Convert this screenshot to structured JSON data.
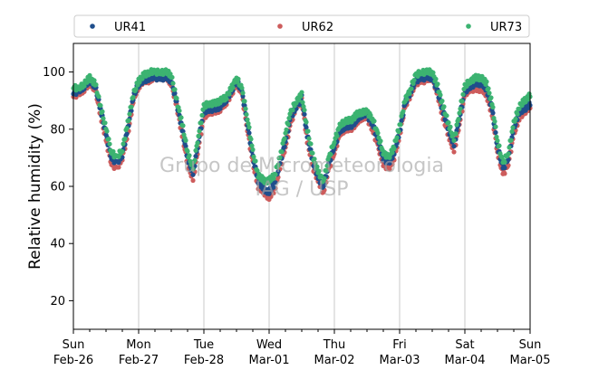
{
  "chart_data": {
    "type": "scatter",
    "title": "",
    "ylabel": "Relative humidity (%)",
    "xlabel": "",
    "xlim": [
      "2023-02-26 00:00",
      "2023-03-05 00:00"
    ],
    "ylim": [
      10,
      110
    ],
    "yticks": [
      20,
      40,
      60,
      80,
      100
    ],
    "xticks": [
      {
        "x": "2023-02-26",
        "day": "Sun",
        "date": "Feb-26"
      },
      {
        "x": "2023-02-27",
        "day": "Mon",
        "date": "Feb-27"
      },
      {
        "x": "2023-02-28",
        "day": "Tue",
        "date": "Feb-28"
      },
      {
        "x": "2023-03-01",
        "day": "Wed",
        "date": "Mar-01"
      },
      {
        "x": "2023-03-02",
        "day": "Thu",
        "date": "Mar-02"
      },
      {
        "x": "2023-03-03",
        "day": "Fri",
        "date": "Mar-03"
      },
      {
        "x": "2023-03-04",
        "day": "Sat",
        "date": "Mar-04"
      },
      {
        "x": "2023-03-05",
        "day": "Sun",
        "date": "Mar-05"
      }
    ],
    "grid": "vertical",
    "legend_position": "top",
    "watermark": [
      "Grupo de Micrometeorologia",
      "IAG / USP"
    ],
    "series": [
      {
        "name": "UR62",
        "color": "#cd5c5c",
        "x": [
          "2023-02-26 00:00",
          "2023-02-26 02:00",
          "2023-02-26 04:00",
          "2023-02-26 06:00",
          "2023-02-26 08:00",
          "2023-02-26 10:00",
          "2023-02-26 12:00",
          "2023-02-26 14:00",
          "2023-02-26 16:00",
          "2023-02-26 18:00",
          "2023-02-26 20:00",
          "2023-02-26 22:00",
          "2023-02-27 00:00",
          "2023-02-27 02:00",
          "2023-02-27 04:00",
          "2023-02-27 06:00",
          "2023-02-27 08:00",
          "2023-02-27 10:00",
          "2023-02-27 12:00",
          "2023-02-27 14:00",
          "2023-02-27 16:00",
          "2023-02-27 18:00",
          "2023-02-27 20:00",
          "2023-02-27 22:00",
          "2023-02-28 00:00",
          "2023-02-28 02:00",
          "2023-02-28 04:00",
          "2023-02-28 06:00",
          "2023-02-28 08:00",
          "2023-02-28 10:00",
          "2023-02-28 12:00",
          "2023-02-28 14:00",
          "2023-02-28 16:00",
          "2023-02-28 18:00",
          "2023-02-28 20:00",
          "2023-02-28 22:00",
          "2023-03-01 00:00",
          "2023-03-01 02:00",
          "2023-03-01 04:00",
          "2023-03-01 06:00",
          "2023-03-01 08:00",
          "2023-03-01 10:00",
          "2023-03-01 12:00",
          "2023-03-01 14:00",
          "2023-03-01 16:00",
          "2023-03-01 18:00",
          "2023-03-01 20:00",
          "2023-03-01 22:00",
          "2023-03-02 00:00",
          "2023-03-02 02:00",
          "2023-03-02 04:00",
          "2023-03-02 06:00",
          "2023-03-02 08:00",
          "2023-03-02 10:00",
          "2023-03-02 12:00",
          "2023-03-02 14:00",
          "2023-03-02 16:00",
          "2023-03-02 18:00",
          "2023-03-02 20:00",
          "2023-03-02 22:00",
          "2023-03-03 00:00",
          "2023-03-03 02:00",
          "2023-03-03 04:00",
          "2023-03-03 06:00",
          "2023-03-03 08:00",
          "2023-03-03 10:00",
          "2023-03-03 12:00",
          "2023-03-03 14:00",
          "2023-03-03 16:00",
          "2023-03-03 18:00",
          "2023-03-03 20:00",
          "2023-03-03 22:00",
          "2023-03-04 00:00",
          "2023-03-04 02:00",
          "2023-03-04 04:00",
          "2023-03-04 06:00",
          "2023-03-04 08:00",
          "2023-03-04 10:00",
          "2023-03-04 12:00",
          "2023-03-04 14:00",
          "2023-03-04 16:00",
          "2023-03-04 18:00",
          "2023-03-04 20:00",
          "2023-03-04 22:00",
          "2023-03-05 00:00"
        ],
        "y": [
          92,
          92,
          94,
          96,
          94,
          85,
          76,
          68,
          66,
          70,
          78,
          90,
          95,
          97,
          97,
          98,
          98,
          98,
          96,
          88,
          78,
          68,
          62,
          74,
          84,
          86,
          86,
          87,
          89,
          92,
          96,
          92,
          80,
          68,
          60,
          58,
          56,
          59,
          66,
          74,
          82,
          88,
          90,
          76,
          67,
          62,
          58,
          66,
          72,
          78,
          80,
          80,
          82,
          84,
          84,
          80,
          74,
          68,
          66,
          70,
          78,
          88,
          92,
          96,
          97,
          97,
          98,
          92,
          84,
          78,
          72,
          82,
          92,
          94,
          94,
          94,
          92,
          85,
          72,
          64,
          68,
          78,
          84,
          86,
          88
        ]
      },
      {
        "name": "UR41",
        "color": "#1f4e8c",
        "x": [
          "2023-02-26 00:00",
          "2023-02-26 02:00",
          "2023-02-26 04:00",
          "2023-02-26 06:00",
          "2023-02-26 08:00",
          "2023-02-26 10:00",
          "2023-02-26 12:00",
          "2023-02-26 14:00",
          "2023-02-26 16:00",
          "2023-02-26 18:00",
          "2023-02-26 20:00",
          "2023-02-26 22:00",
          "2023-02-27 00:00",
          "2023-02-27 02:00",
          "2023-02-27 04:00",
          "2023-02-27 06:00",
          "2023-02-27 08:00",
          "2023-02-27 10:00",
          "2023-02-27 12:00",
          "2023-02-27 14:00",
          "2023-02-27 16:00",
          "2023-02-27 18:00",
          "2023-02-27 20:00",
          "2023-02-27 22:00",
          "2023-02-28 00:00",
          "2023-02-28 02:00",
          "2023-02-28 04:00",
          "2023-02-28 06:00",
          "2023-02-28 08:00",
          "2023-02-28 10:00",
          "2023-02-28 12:00",
          "2023-02-28 14:00",
          "2023-02-28 16:00",
          "2023-02-28 18:00",
          "2023-02-28 20:00",
          "2023-02-28 22:00",
          "2023-03-01 00:00",
          "2023-03-01 02:00",
          "2023-03-01 04:00",
          "2023-03-01 06:00",
          "2023-03-01 08:00",
          "2023-03-01 10:00",
          "2023-03-01 12:00",
          "2023-03-01 14:00",
          "2023-03-01 16:00",
          "2023-03-01 18:00",
          "2023-03-01 20:00",
          "2023-03-01 22:00",
          "2023-03-02 00:00",
          "2023-03-02 02:00",
          "2023-03-02 04:00",
          "2023-03-02 06:00",
          "2023-03-02 08:00",
          "2023-03-02 10:00",
          "2023-03-02 12:00",
          "2023-03-02 14:00",
          "2023-03-02 16:00",
          "2023-03-02 18:00",
          "2023-03-02 20:00",
          "2023-03-02 22:00",
          "2023-03-03 00:00",
          "2023-03-03 02:00",
          "2023-03-03 04:00",
          "2023-03-03 06:00",
          "2023-03-03 08:00",
          "2023-03-03 10:00",
          "2023-03-03 12:00",
          "2023-03-03 14:00",
          "2023-03-03 16:00",
          "2023-03-03 18:00",
          "2023-03-03 20:00",
          "2023-03-03 22:00",
          "2023-03-04 00:00",
          "2023-03-04 02:00",
          "2023-03-04 04:00",
          "2023-03-04 06:00",
          "2023-03-04 08:00",
          "2023-03-04 10:00",
          "2023-03-04 12:00",
          "2023-03-04 14:00",
          "2023-03-04 16:00",
          "2023-03-04 18:00",
          "2023-03-04 20:00",
          "2023-03-04 22:00",
          "2023-03-05 00:00"
        ],
        "y": [
          93,
          93,
          95,
          97,
          95,
          87,
          78,
          70,
          68,
          71,
          80,
          91,
          96,
          97,
          98,
          98,
          98,
          98,
          97,
          89,
          80,
          70,
          64,
          76,
          86,
          87,
          87,
          88,
          90,
          93,
          97,
          93,
          82,
          70,
          62,
          59,
          58,
          61,
          68,
          76,
          84,
          88,
          91,
          78,
          69,
          63,
          60,
          68,
          74,
          79,
          81,
          81,
          83,
          85,
          85,
          82,
          76,
          70,
          68,
          72,
          79,
          89,
          93,
          97,
          98,
          98,
          98,
          93,
          86,
          80,
          74,
          84,
          93,
          95,
          96,
          96,
          94,
          87,
          74,
          66,
          70,
          80,
          86,
          87,
          89
        ]
      },
      {
        "name": "UR73",
        "color": "#3cb371",
        "x": [
          "2023-02-26 00:00",
          "2023-02-26 02:00",
          "2023-02-26 04:00",
          "2023-02-26 06:00",
          "2023-02-26 08:00",
          "2023-02-26 10:00",
          "2023-02-26 12:00",
          "2023-02-26 14:00",
          "2023-02-26 16:00",
          "2023-02-26 18:00",
          "2023-02-26 20:00",
          "2023-02-26 22:00",
          "2023-02-27 00:00",
          "2023-02-27 02:00",
          "2023-02-27 04:00",
          "2023-02-27 06:00",
          "2023-02-27 08:00",
          "2023-02-27 10:00",
          "2023-02-27 12:00",
          "2023-02-27 14:00",
          "2023-02-27 16:00",
          "2023-02-27 18:00",
          "2023-02-27 20:00",
          "2023-02-27 22:00",
          "2023-02-28 00:00",
          "2023-02-28 02:00",
          "2023-02-28 04:00",
          "2023-02-28 06:00",
          "2023-02-28 08:00",
          "2023-02-28 10:00",
          "2023-02-28 12:00",
          "2023-02-28 14:00",
          "2023-02-28 16:00",
          "2023-02-28 18:00",
          "2023-02-28 20:00",
          "2023-02-28 22:00",
          "2023-03-01 00:00",
          "2023-03-01 02:00",
          "2023-03-01 04:00",
          "2023-03-01 06:00",
          "2023-03-01 08:00",
          "2023-03-01 10:00",
          "2023-03-01 12:00",
          "2023-03-01 14:00",
          "2023-03-01 16:00",
          "2023-03-01 18:00",
          "2023-03-01 20:00",
          "2023-03-01 22:00",
          "2023-03-02 00:00",
          "2023-03-02 02:00",
          "2023-03-02 04:00",
          "2023-03-02 06:00",
          "2023-03-02 08:00",
          "2023-03-02 10:00",
          "2023-03-02 12:00",
          "2023-03-02 14:00",
          "2023-03-02 16:00",
          "2023-03-02 18:00",
          "2023-03-02 20:00",
          "2023-03-02 22:00",
          "2023-03-03 00:00",
          "2023-03-03 02:00",
          "2023-03-03 04:00",
          "2023-03-03 06:00",
          "2023-03-03 08:00",
          "2023-03-03 10:00",
          "2023-03-03 12:00",
          "2023-03-03 14:00",
          "2023-03-03 16:00",
          "2023-03-03 18:00",
          "2023-03-03 20:00",
          "2023-03-03 22:00",
          "2023-03-04 00:00",
          "2023-03-04 02:00",
          "2023-03-04 04:00",
          "2023-03-04 06:00",
          "2023-03-04 08:00",
          "2023-03-04 10:00",
          "2023-03-04 12:00",
          "2023-03-04 14:00",
          "2023-03-04 16:00",
          "2023-03-04 18:00",
          "2023-03-04 20:00",
          "2023-03-04 22:00",
          "2023-03-05 00:00"
        ],
        "y": [
          95,
          94,
          96,
          98,
          96,
          88,
          80,
          72,
          70,
          73,
          82,
          92,
          97,
          99,
          100,
          100,
          100,
          100,
          99,
          90,
          82,
          72,
          66,
          78,
          88,
          89,
          89,
          90,
          91,
          94,
          98,
          94,
          84,
          72,
          64,
          62,
          62,
          64,
          70,
          79,
          86,
          90,
          92,
          80,
          71,
          65,
          62,
          70,
          76,
          81,
          83,
          83,
          85,
          86,
          86,
          84,
          78,
          72,
          70,
          74,
          81,
          90,
          94,
          99,
          100,
          100,
          100,
          95,
          88,
          82,
          76,
          86,
          95,
          97,
          98,
          98,
          96,
          89,
          76,
          68,
          72,
          82,
          88,
          90,
          92
        ]
      }
    ]
  }
}
